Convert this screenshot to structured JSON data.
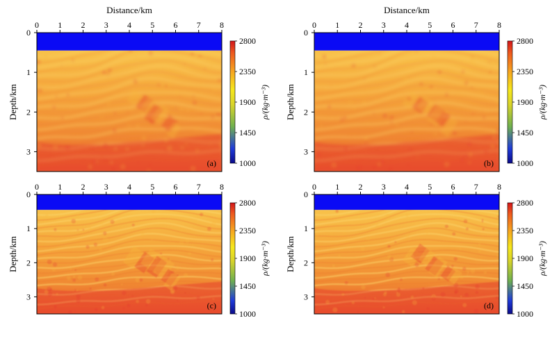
{
  "figure": {
    "xlabel": "Distance/km",
    "ylabel": "Depth/km",
    "colorbar_label": "ρ/(kg·m⁻³)",
    "colorbar_ticks": [
      "2800",
      "2350",
      "1900",
      "1450",
      "1000"
    ],
    "colors": {
      "water": "#0a0af5",
      "sediment_low": "#f7b73a",
      "sediment_mid": "#f29437",
      "sediment_high": "#e5332a"
    }
  },
  "chart_data": [
    {
      "type": "heatmap",
      "panel_label": "(a)",
      "x_ticks": [
        "0",
        "1",
        "2",
        "3",
        "4",
        "5",
        "6",
        "7",
        "8"
      ],
      "y_ticks": [
        "0",
        "1",
        "2",
        "3"
      ],
      "xlim": [
        0,
        8
      ],
      "ylim": [
        0,
        3.5
      ],
      "water_bottom_km": 0.45,
      "density_range": [
        1000,
        2800
      ],
      "xlabel": "Distance/km",
      "ylabel": "Depth/km",
      "colorbar_label": "ρ/(kg·m⁻³)",
      "colorbar_ticks": [
        "2800",
        "2350",
        "1900",
        "1450",
        "1000"
      ]
    },
    {
      "type": "heatmap",
      "panel_label": "(b)",
      "x_ticks": [
        "0",
        "1",
        "2",
        "3",
        "4",
        "5",
        "6",
        "7",
        "8"
      ],
      "y_ticks": [
        "0",
        "1",
        "2",
        "3"
      ],
      "xlim": [
        0,
        8
      ],
      "ylim": [
        0,
        3.5
      ],
      "water_bottom_km": 0.45,
      "density_range": [
        1000,
        2800
      ],
      "xlabel": "Distance/km",
      "ylabel": "Depth/km",
      "colorbar_label": "ρ/(kg·m⁻³)",
      "colorbar_ticks": [
        "2800",
        "2350",
        "1900",
        "1450",
        "1000"
      ]
    },
    {
      "type": "heatmap",
      "panel_label": "(c)",
      "x_ticks": [
        "0",
        "1",
        "2",
        "3",
        "4",
        "5",
        "6",
        "7",
        "8"
      ],
      "y_ticks": [
        "0",
        "1",
        "2",
        "3"
      ],
      "xlim": [
        0,
        8
      ],
      "ylim": [
        0,
        3.5
      ],
      "water_bottom_km": 0.45,
      "density_range": [
        1000,
        2800
      ],
      "xlabel": "",
      "ylabel": "Depth/km",
      "colorbar_label": "ρ/(kg·m⁻³)",
      "colorbar_ticks": [
        "2800",
        "2350",
        "1900",
        "1450",
        "1000"
      ]
    },
    {
      "type": "heatmap",
      "panel_label": "(d)",
      "x_ticks": [
        "0",
        "1",
        "2",
        "3",
        "4",
        "5",
        "6",
        "7",
        "8"
      ],
      "y_ticks": [
        "0",
        "1",
        "2",
        "3"
      ],
      "xlim": [
        0,
        8
      ],
      "ylim": [
        0,
        3.5
      ],
      "water_bottom_km": 0.45,
      "density_range": [
        1000,
        2800
      ],
      "xlabel": "",
      "ylabel": "Depth/km",
      "colorbar_label": "ρ/(kg·m⁻³)",
      "colorbar_ticks": [
        "2800",
        "2350",
        "1900",
        "1450",
        "1000"
      ]
    }
  ]
}
